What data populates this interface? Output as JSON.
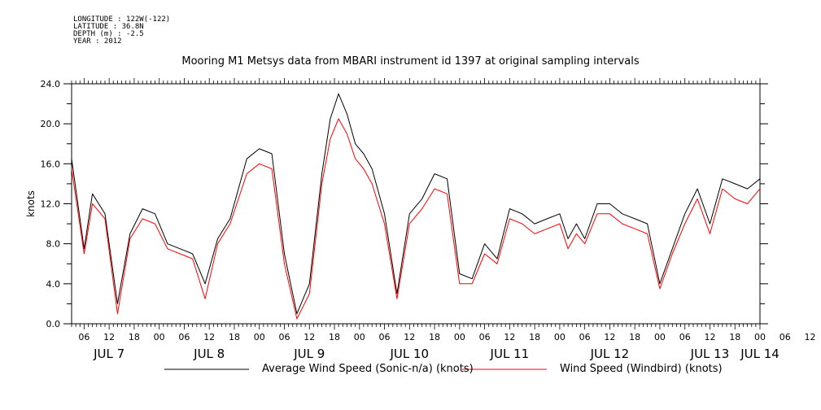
{
  "header": {
    "longitude": "LONGITUDE : 122W(-122)",
    "latitude": "LATITUDE : 36.8N",
    "depth": "DEPTH (m) : -2.5",
    "year": "YEAR : 2012"
  },
  "chart_data": {
    "type": "line",
    "title": "Mooring M1 Metsys data from MBARI instrument id 1397 at original sampling intervals",
    "ylabel": "knots",
    "xlabel": "",
    "ylim": [
      0,
      24
    ],
    "xlim_hours": [
      0,
      165
    ],
    "y_ticks": [
      "0.0",
      "4.0",
      "8.0",
      "12.0",
      "16.0",
      "20.0",
      "24.0"
    ],
    "x_hour_ticks": [
      "06",
      "12",
      "18",
      "00",
      "06",
      "12",
      "18",
      "00",
      "06",
      "12",
      "18",
      "00",
      "06",
      "12",
      "18",
      "00",
      "06",
      "12",
      "18",
      "00",
      "06",
      "12",
      "18",
      "00",
      "06",
      "12",
      "18",
      "00",
      "06",
      "12",
      "18",
      "00"
    ],
    "x_day_labels": [
      "JUL  7",
      "JUL  8",
      "JUL  9",
      "JUL 10",
      "JUL 11",
      "JUL 12",
      "JUL 13",
      "JUL 14"
    ],
    "grid": false,
    "legend_position": "bottom",
    "series": [
      {
        "name": "Average Wind Speed (Sonic-n/a) (knots)",
        "color": "#000000",
        "x_hours": [
          0,
          3,
          5,
          8,
          11,
          14,
          17,
          20,
          23,
          26,
          29,
          32,
          35,
          38,
          42,
          45,
          48,
          51,
          54,
          57,
          60,
          62,
          64,
          66,
          68,
          70,
          72,
          75,
          78,
          81,
          84,
          87,
          90,
          93,
          96,
          99,
          102,
          105,
          108,
          111,
          114,
          117,
          119,
          121,
          123,
          126,
          129,
          132,
          135,
          138,
          141,
          144,
          147,
          150,
          153,
          156,
          159,
          162,
          165
        ],
        "values": [
          16.5,
          7.5,
          13.0,
          11.0,
          2.0,
          9.0,
          11.5,
          11.0,
          8.0,
          7.5,
          7.0,
          4.0,
          8.5,
          10.5,
          16.5,
          17.5,
          17.0,
          7.0,
          1.0,
          4.0,
          15.0,
          20.5,
          23.0,
          21.0,
          18.0,
          17.0,
          15.5,
          11.0,
          3.0,
          11.0,
          12.5,
          15.0,
          14.5,
          5.0,
          4.5,
          8.0,
          6.5,
          11.5,
          11.0,
          10.0,
          10.5,
          11.0,
          8.5,
          10.0,
          8.5,
          12.0,
          12.0,
          11.0,
          10.5,
          10.0,
          4.0,
          7.5,
          11.0,
          13.5,
          10.0,
          14.5,
          14.0,
          13.5,
          14.5
        ]
      },
      {
        "name": "Wind Speed (Windbird) (knots)",
        "color": "#ff0000",
        "x_hours": [
          0,
          3,
          5,
          8,
          11,
          14,
          17,
          20,
          23,
          26,
          29,
          32,
          35,
          38,
          42,
          45,
          48,
          51,
          54,
          57,
          60,
          62,
          64,
          66,
          68,
          70,
          72,
          75,
          78,
          81,
          84,
          87,
          90,
          93,
          96,
          99,
          102,
          105,
          108,
          111,
          114,
          117,
          119,
          121,
          123,
          126,
          129,
          132,
          135,
          138,
          141,
          144,
          147,
          150,
          153,
          156,
          159,
          162,
          165
        ],
        "values": [
          15.5,
          7.0,
          12.0,
          10.5,
          1.0,
          8.5,
          10.5,
          10.0,
          7.5,
          7.0,
          6.5,
          2.5,
          8.0,
          10.0,
          15.0,
          16.0,
          15.5,
          6.0,
          0.5,
          3.0,
          14.0,
          18.5,
          20.5,
          19.0,
          16.5,
          15.5,
          14.0,
          10.0,
          2.5,
          10.0,
          11.5,
          13.5,
          13.0,
          4.0,
          4.0,
          7.0,
          6.0,
          10.5,
          10.0,
          9.0,
          9.5,
          10.0,
          7.5,
          9.0,
          8.0,
          11.0,
          11.0,
          10.0,
          9.5,
          9.0,
          3.5,
          7.0,
          10.0,
          12.5,
          9.0,
          13.5,
          12.5,
          12.0,
          13.5
        ]
      }
    ]
  }
}
